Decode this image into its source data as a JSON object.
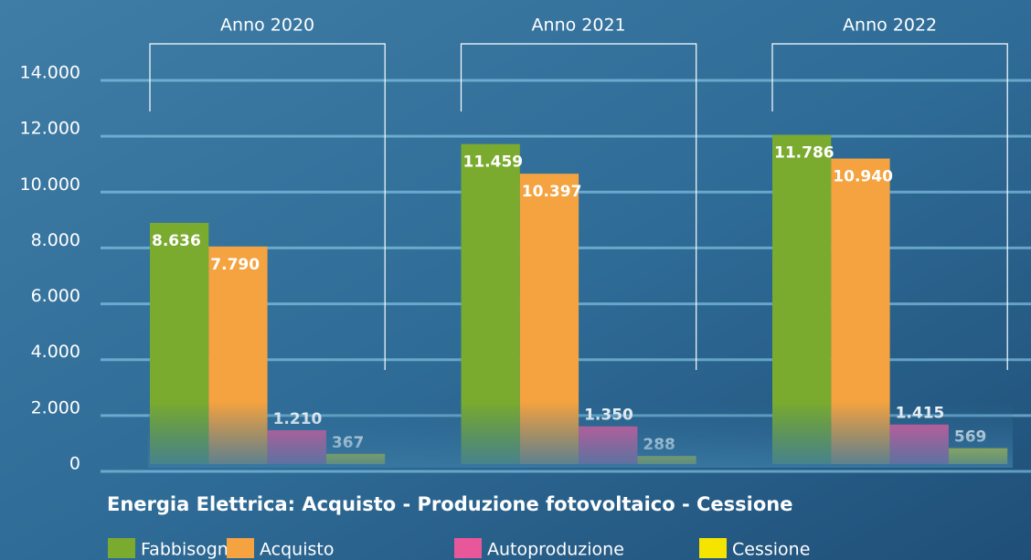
{
  "chart_data": {
    "type": "bar",
    "title": "Energia Elettrica: Acquisto - Produzione fotovoltaico - Cessione",
    "categories": [
      "Anno 2020",
      "Anno 2021",
      "Anno 2022"
    ],
    "series": [
      {
        "name": "Fabbisogno",
        "color": "#7aab2e",
        "values": [
          8636,
          11459,
          11786
        ],
        "value_labels": [
          "8.636",
          "11.459",
          "11.786"
        ]
      },
      {
        "name": "Acquisto",
        "color": "#f4a340",
        "values": [
          7790,
          10397,
          10940
        ],
        "value_labels": [
          "7.790",
          "10.397",
          "10.940"
        ]
      },
      {
        "name": "Autoproduzione",
        "color": "#e9579b",
        "values": [
          1210,
          1350,
          1415
        ],
        "value_labels": [
          "1.210",
          "1.350",
          "1.415"
        ]
      },
      {
        "name": "Cessione",
        "color": "#f5e400",
        "values": [
          367,
          288,
          569
        ]
      }
    ],
    "ylim": [
      0,
      14000
    ],
    "yticks": [
      0,
      {
        "value": 2000,
        "label": "2.000"
      },
      {
        "value": 4000,
        "label": "4.000"
      },
      {
        "value": 6000,
        "label": "6.000"
      },
      {
        "value": 8000,
        "label": "8.000"
      },
      {
        "value": 10000,
        "label": "10.000"
      },
      {
        "value": 12000,
        "label": "12.000"
      },
      {
        "value": 14000,
        "label": "14.000"
      }
    ],
    "grid": true
  }
}
